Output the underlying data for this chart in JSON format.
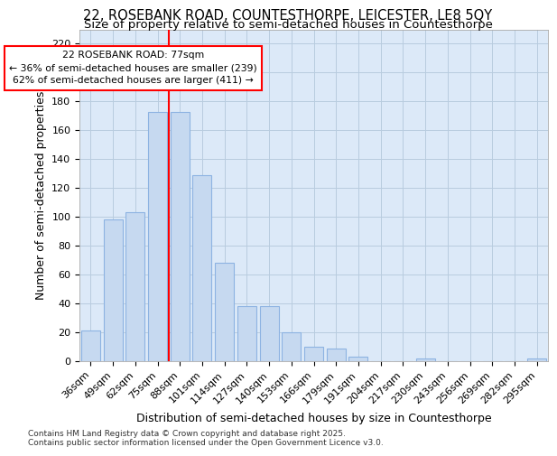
{
  "title1": "22, ROSEBANK ROAD, COUNTESTHORPE, LEICESTER, LE8 5QY",
  "title2": "Size of property relative to semi-detached houses in Countesthorpe",
  "xlabel": "Distribution of semi-detached houses by size in Countesthorpe",
  "ylabel": "Number of semi-detached properties",
  "annotation_title": "22 ROSEBANK ROAD: 77sqm",
  "annotation_line1": "← 36% of semi-detached houses are smaller (239)",
  "annotation_line2": "62% of semi-detached houses are larger (411) →",
  "footer": "Contains HM Land Registry data © Crown copyright and database right 2025.\nContains public sector information licensed under the Open Government Licence v3.0.",
  "bar_labels": [
    "36sqm",
    "49sqm",
    "62sqm",
    "75sqm",
    "88sqm",
    "101sqm",
    "114sqm",
    "127sqm",
    "140sqm",
    "153sqm",
    "166sqm",
    "179sqm",
    "191sqm",
    "204sqm",
    "217sqm",
    "230sqm",
    "243sqm",
    "256sqm",
    "269sqm",
    "282sqm",
    "295sqm"
  ],
  "bar_values": [
    21,
    98,
    103,
    173,
    173,
    129,
    68,
    38,
    38,
    20,
    10,
    9,
    3,
    0,
    0,
    2,
    0,
    0,
    0,
    0,
    2
  ],
  "bar_color": "#c6d9f0",
  "bar_edge_color": "#8db3e2",
  "red_line_x": 3.5,
  "ylim": [
    0,
    230
  ],
  "yticks": [
    0,
    20,
    40,
    60,
    80,
    100,
    120,
    140,
    160,
    180,
    200,
    220
  ],
  "bg_color": "#dce9f8",
  "grid_color": "#b8ccdf",
  "title_fontsize": 10.5,
  "subtitle_fontsize": 9.5,
  "axis_label_fontsize": 9,
  "tick_fontsize": 8,
  "footer_fontsize": 6.5
}
